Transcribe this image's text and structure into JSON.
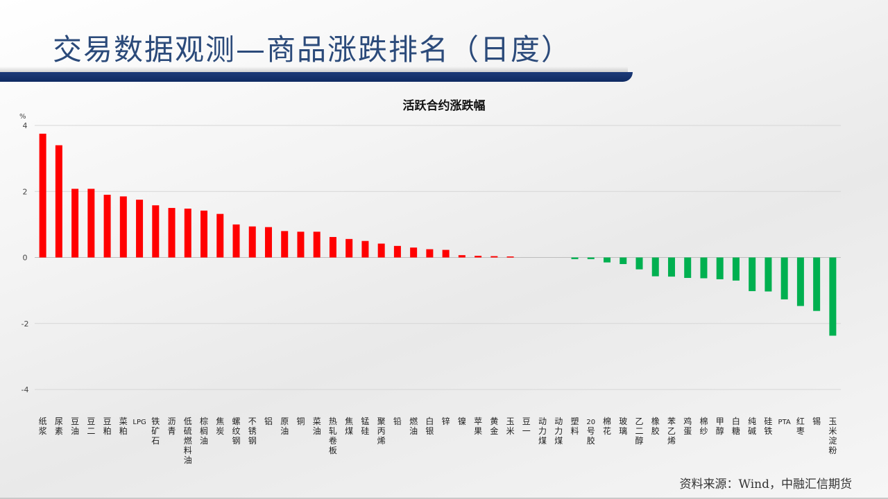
{
  "slide": {
    "title": "交易数据观测—商品涨跌排名（日度）",
    "source": "资料来源：Wind，中融汇信期货"
  },
  "colors": {
    "positive": "#ff0000",
    "negative": "#00b050",
    "title": "#2b4a7a",
    "bar_accent": "#1c3a78"
  },
  "chart_data": {
    "type": "bar",
    "title": "活跃合约涨跌幅",
    "ylabel": "%",
    "ylim": [
      -4,
      4
    ],
    "yticks": [
      4,
      2,
      0,
      -2,
      -4
    ],
    "grid": true,
    "categories": [
      "纸浆",
      "尿素",
      "豆油",
      "豆二",
      "豆粕",
      "菜粕",
      "LPG",
      "铁矿石",
      "沥青",
      "低硫燃料油",
      "棕榈油",
      "焦炭",
      "螺纹钢",
      "不锈钢",
      "铝",
      "原油",
      "铜",
      "菜油",
      "热轧卷板",
      "焦煤",
      "锰硅",
      "聚丙烯",
      "铅",
      "燃油",
      "白银",
      "锌",
      "镍",
      "苹果",
      "黄金",
      "玉米",
      "豆一",
      "动力煤",
      "动力煤",
      "塑料",
      "20号胶",
      "棉花",
      "玻璃",
      "乙二醇",
      "橡胶",
      "苯乙烯",
      "鸡蛋",
      "棉纱",
      "甲醇",
      "白糖",
      "纯碱",
      "硅铁",
      "PTA",
      "红枣",
      "锡",
      "玉米淀粉"
    ],
    "values": [
      3.75,
      3.4,
      2.08,
      2.08,
      1.9,
      1.85,
      1.75,
      1.58,
      1.5,
      1.48,
      1.42,
      1.32,
      1.0,
      0.94,
      0.92,
      0.8,
      0.78,
      0.78,
      0.62,
      0.56,
      0.5,
      0.42,
      0.35,
      0.3,
      0.25,
      0.23,
      0.07,
      0.05,
      0.04,
      0.03,
      0.0,
      0.0,
      0.0,
      -0.05,
      -0.05,
      -0.15,
      -0.2,
      -0.36,
      -0.57,
      -0.58,
      -0.62,
      -0.63,
      -0.66,
      -0.7,
      -1.02,
      -1.03,
      -1.27,
      -1.47,
      -1.62,
      -2.37
    ]
  }
}
